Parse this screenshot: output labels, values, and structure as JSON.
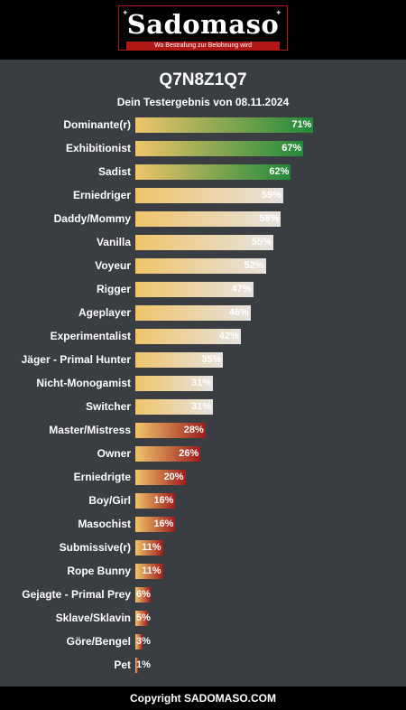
{
  "header": {
    "logo_text": "Sadomaso",
    "logo_tagline": "Wo Bestrafung zur Belohnung wird"
  },
  "title": "Q7N8Z1Q7",
  "subtitle": "Dein Testergebnis von 08.11.2024",
  "colors": {
    "high": "#1f8a3a",
    "mid": "#e6e3df",
    "low": "#9e1d1d",
    "bar_start": "#f0c46a",
    "background": "#3a3d42"
  },
  "chart_data": {
    "type": "bar",
    "orientation": "horizontal",
    "xlim": [
      0,
      100
    ],
    "categories": [
      "Dominante(r)",
      "Exhibitionist",
      "Sadist",
      "Erniedriger",
      "Daddy/Mommy",
      "Vanilla",
      "Voyeur",
      "Rigger",
      "Ageplayer",
      "Experimentalist",
      "Jäger - Primal Hunter",
      "Nicht-Monogamist",
      "Switcher",
      "Master/Mistress",
      "Owner",
      "Erniedrigte",
      "Boy/Girl",
      "Masochist",
      "Submissive(r)",
      "Rope Bunny",
      "Gejagte - Primal Prey",
      "Sklave/Sklavin",
      "Göre/Bengel",
      "Pet"
    ],
    "values": [
      71,
      67,
      62,
      59,
      58,
      55,
      52,
      47,
      46,
      42,
      35,
      31,
      31,
      28,
      26,
      20,
      16,
      16,
      11,
      11,
      6,
      5,
      3,
      1
    ],
    "value_labels": [
      "71%",
      "67%",
      "62%",
      "59%",
      "58%",
      "55%",
      "52%",
      "47%",
      "46%",
      "42%",
      "35%",
      "31%",
      "31%",
      "28%",
      "26%",
      "20%",
      "16%",
      "16%",
      "11%",
      "11%",
      "6%",
      "5%",
      "3%",
      "1%"
    ],
    "color_group": [
      "high",
      "high",
      "high",
      "mid",
      "mid",
      "mid",
      "mid",
      "mid",
      "mid",
      "mid",
      "mid",
      "mid",
      "mid",
      "low",
      "low",
      "low",
      "low",
      "low",
      "low",
      "low",
      "low",
      "low",
      "low",
      "low"
    ]
  },
  "footer": {
    "copyright": "Copyright SADOMASO.COM"
  }
}
